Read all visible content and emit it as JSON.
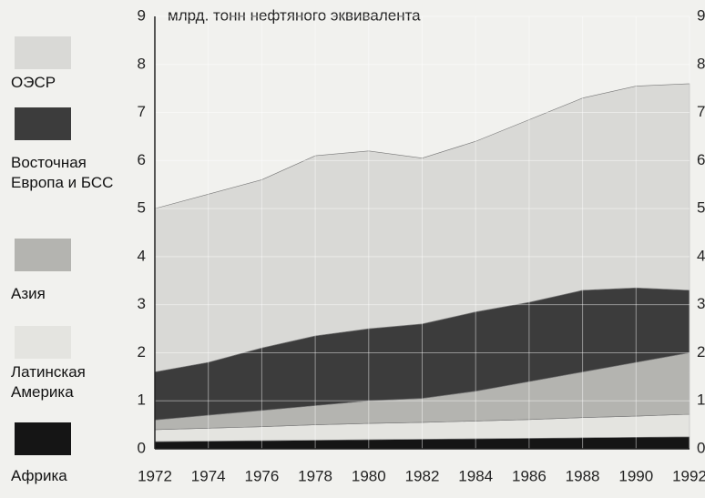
{
  "chart_data": {
    "type": "stacked_area",
    "title": "млрд. тонн нефтяного эквивалента",
    "x": [
      1972,
      1974,
      1976,
      1978,
      1980,
      1982,
      1984,
      1986,
      1988,
      1990,
      1992
    ],
    "series": [
      {
        "name": "ОЭСР",
        "color": "#d9d9d6",
        "values": [
          3.4,
          3.5,
          3.5,
          3.75,
          3.7,
          3.45,
          3.55,
          3.8,
          4.0,
          4.2,
          4.3
        ]
      },
      {
        "name": "Восточная Европа и БСС",
        "color": "#3c3c3c",
        "values": [
          1.0,
          1.1,
          1.3,
          1.45,
          1.5,
          1.55,
          1.65,
          1.65,
          1.7,
          1.55,
          1.3
        ]
      },
      {
        "name": "Азия",
        "color": "#b4b4b0",
        "values": [
          0.2,
          0.27,
          0.34,
          0.4,
          0.47,
          0.5,
          0.62,
          0.79,
          0.95,
          1.12,
          1.28
        ]
      },
      {
        "name": "Латинская Америка",
        "color": "#e4e4e0",
        "values": [
          0.25,
          0.27,
          0.29,
          0.32,
          0.34,
          0.35,
          0.37,
          0.39,
          0.42,
          0.44,
          0.47
        ]
      },
      {
        "name": "Африка",
        "color": "#151515",
        "values": [
          0.15,
          0.16,
          0.17,
          0.18,
          0.19,
          0.2,
          0.21,
          0.22,
          0.23,
          0.24,
          0.25
        ]
      }
    ],
    "xlim": [
      1972,
      1992
    ],
    "xticks": [
      1972,
      1974,
      1976,
      1978,
      1980,
      1982,
      1984,
      1986,
      1988,
      1990,
      1992
    ],
    "ylim": [
      0,
      9
    ],
    "yticks": [
      0,
      1,
      2,
      3,
      4,
      5,
      6,
      7,
      8,
      9
    ],
    "grid": true,
    "legend": "left"
  }
}
